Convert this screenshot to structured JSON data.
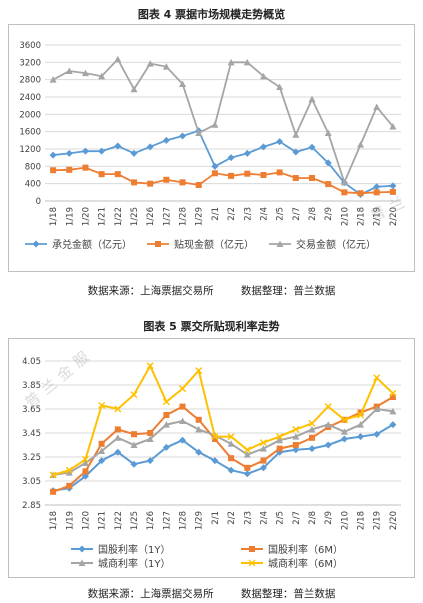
{
  "figure1": {
    "title": "图表 4  票据市场规模走势概览",
    "source_left": "数据来源：上海票据交易所",
    "source_right": "数据整理：普兰数据",
    "watermark": "普兰"
  },
  "figure2": {
    "title": "图表 5  票交所贴现利率走势",
    "source_left": "数据来源：上海票据交易所",
    "source_right": "数据整理：普兰数据",
    "watermark": "普兰金服"
  },
  "chart_data": [
    {
      "type": "line",
      "title": "",
      "xlabel": "",
      "ylabel": "",
      "categories": [
        "1/18",
        "1/19",
        "1/20",
        "1/21",
        "1/22",
        "1/25",
        "1/26",
        "1/27",
        "1/28",
        "1/29",
        "2/1",
        "2/2",
        "2/3",
        "2/4",
        "2/5",
        "2/7",
        "2/8",
        "2/9",
        "2/10",
        "2/18",
        "2/19",
        "2/20"
      ],
      "yticks": [
        0,
        400,
        800,
        1200,
        1600,
        2000,
        2400,
        2800,
        3200,
        3600
      ],
      "ylim": [
        0,
        3600
      ],
      "grid": true,
      "legend": "bottom",
      "series": [
        {
          "name": "承兑金额（亿元）",
          "color": "#5b9bd5",
          "marker": "diamond",
          "values": [
            1060,
            1100,
            1150,
            1150,
            1270,
            1100,
            1250,
            1400,
            1500,
            1620,
            800,
            1000,
            1100,
            1250,
            1370,
            1130,
            1240,
            880,
            420,
            150,
            330,
            350
          ]
        },
        {
          "name": "贴现金额（亿元）",
          "color": "#ed7d31",
          "marker": "square",
          "values": [
            710,
            720,
            770,
            620,
            620,
            430,
            400,
            490,
            430,
            370,
            640,
            580,
            630,
            600,
            660,
            530,
            530,
            390,
            200,
            180,
            200,
            210
          ]
        },
        {
          "name": "交易金额（亿元）",
          "color": "#a5a5a5",
          "marker": "triangle",
          "values": [
            2800,
            3000,
            2950,
            2880,
            3270,
            2580,
            3170,
            3100,
            2700,
            1570,
            1760,
            3200,
            3200,
            2880,
            2630,
            1530,
            2350,
            1570,
            430,
            1300,
            2170,
            1720
          ]
        }
      ]
    },
    {
      "type": "line",
      "title": "",
      "xlabel": "",
      "ylabel": "",
      "categories": [
        "1/18",
        "1/19",
        "1/20",
        "1/21",
        "1/22",
        "1/25",
        "1/26",
        "1/27",
        "1/28",
        "1/29",
        "2/1",
        "2/2",
        "2/3",
        "2/4",
        "2/5",
        "2/7",
        "2/8",
        "2/9",
        "2/10",
        "2/18",
        "2/19",
        "2/20"
      ],
      "yticks": [
        "2.85",
        "3.05",
        "3.25",
        "3.45",
        "3.65",
        "3.85",
        "4.05"
      ],
      "ylim": [
        2.85,
        4.05
      ],
      "grid": true,
      "legend": "bottom",
      "series": [
        {
          "name": "国股利率（1Y）",
          "color": "#5b9bd5",
          "marker": "diamond",
          "values": [
            2.97,
            2.99,
            3.09,
            3.22,
            3.29,
            3.19,
            3.22,
            3.33,
            3.39,
            3.29,
            3.22,
            3.14,
            3.11,
            3.16,
            3.29,
            3.31,
            3.32,
            3.35,
            3.4,
            3.42,
            3.44,
            3.52
          ]
        },
        {
          "name": "国股利率（6M）",
          "color": "#ed7d31",
          "marker": "square",
          "values": [
            2.96,
            3.01,
            3.13,
            3.36,
            3.48,
            3.44,
            3.45,
            3.6,
            3.67,
            3.56,
            3.4,
            3.24,
            3.16,
            3.22,
            3.32,
            3.35,
            3.41,
            3.5,
            3.56,
            3.62,
            3.67,
            3.75
          ]
        },
        {
          "name": "城商利率（1Y）",
          "color": "#a5a5a5",
          "marker": "triangle",
          "values": [
            3.1,
            3.12,
            3.2,
            3.3,
            3.41,
            3.35,
            3.4,
            3.52,
            3.55,
            3.48,
            3.43,
            3.36,
            3.27,
            3.32,
            3.39,
            3.42,
            3.48,
            3.52,
            3.46,
            3.52,
            3.65,
            3.63
          ]
        },
        {
          "name": "城商利率（6M）",
          "color": "#ffc000",
          "marker": "x",
          "values": [
            3.1,
            3.14,
            3.23,
            3.68,
            3.65,
            3.77,
            4.01,
            3.71,
            3.82,
            3.97,
            3.42,
            3.42,
            3.31,
            3.37,
            3.42,
            3.48,
            3.53,
            3.67,
            3.56,
            3.6,
            3.91,
            3.78
          ]
        }
      ]
    }
  ]
}
